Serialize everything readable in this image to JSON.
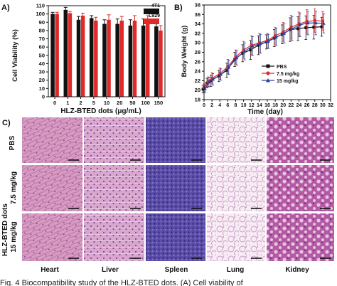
{
  "panel_a": {
    "label": "A)",
    "legend": [
      "4T1",
      "L929"
    ]
  },
  "panel_b": {
    "label": "B)",
    "legend": [
      "PBS",
      "7.5 mg/kg",
      "15 mg/kg"
    ]
  },
  "panel_c": {
    "label": "C)",
    "rows": [
      "PBS",
      "7.5 mg/kg",
      "15 mg/kg"
    ],
    "group_label": "HLZ-BTED dots",
    "columns": [
      "Heart",
      "Liver",
      "Spleen",
      "Lung",
      "Kidney"
    ]
  },
  "caption": "Fig. 4   Biocompatibility study of the HLZ-BTED dots. (A) Cell viability of",
  "colors": {
    "4T1": "#111111",
    "L929": "#e02a2a",
    "PBS": "#111111",
    "7.5 mg/kg": "#e02a2a",
    "15 mg/kg": "#2b3f9e"
  },
  "chart_data": [
    {
      "type": "bar",
      "categories": [
        "0",
        "1",
        "2",
        "5",
        "10",
        "20",
        "50",
        "100",
        "150"
      ],
      "series": [
        {
          "name": "4T1",
          "values": [
            100,
            105,
            93,
            95,
            88,
            88,
            86,
            86,
            85
          ],
          "errors": [
            2,
            3,
            4,
            3,
            5,
            6,
            7,
            8,
            3
          ]
        },
        {
          "name": "L929",
          "values": [
            100,
            101,
            98,
            92,
            93,
            92,
            92,
            91,
            80
          ],
          "errors": [
            2,
            2,
            3,
            4,
            6,
            5,
            6,
            7,
            6
          ]
        }
      ],
      "xlabel": "HLZ-BTED dots (μg/mL)",
      "ylabel": "Cell Viability (%)",
      "ylim": [
        0,
        110
      ],
      "yticks": [
        0,
        10,
        20,
        30,
        40,
        50,
        60,
        70,
        80,
        90,
        100,
        110
      ]
    },
    {
      "type": "line",
      "x": [
        0,
        1,
        2,
        4,
        6,
        8,
        10,
        12,
        14,
        16,
        18,
        20,
        22,
        24,
        26,
        28,
        30
      ],
      "series": [
        {
          "name": "PBS",
          "values": [
            20.2,
            21.5,
            22.0,
            23.0,
            24.2,
            26.5,
            27.8,
            28.5,
            29.5,
            30.2,
            31.0,
            31.8,
            32.8,
            33.0,
            33.2,
            33.3,
            33.4
          ],
          "errors": [
            0.8,
            1.0,
            1.2,
            1.2,
            1.5,
            1.5,
            1.8,
            2.0,
            2.0,
            1.5,
            1.8,
            2.0,
            2.5,
            2.5,
            2.5,
            2.5,
            2.0
          ]
        },
        {
          "name": "7.5 mg/kg",
          "values": [
            20.5,
            21.8,
            22.5,
            23.5,
            25.0,
            27.0,
            28.5,
            29.5,
            30.0,
            30.5,
            31.5,
            32.3,
            33.3,
            34.0,
            34.5,
            34.7,
            34.6
          ],
          "errors": [
            0.8,
            1.0,
            1.2,
            1.2,
            1.5,
            1.5,
            1.8,
            2.0,
            2.0,
            1.5,
            1.8,
            2.0,
            2.5,
            2.5,
            2.5,
            2.5,
            2.0
          ]
        },
        {
          "name": "15 mg/kg",
          "values": [
            20.3,
            21.7,
            22.3,
            23.3,
            24.8,
            26.8,
            28.2,
            29.3,
            29.8,
            30.3,
            31.2,
            32.0,
            33.0,
            33.8,
            34.2,
            34.2,
            34.1
          ],
          "errors": [
            0.8,
            1.0,
            1.2,
            1.2,
            1.5,
            1.5,
            1.8,
            2.0,
            2.0,
            1.5,
            1.8,
            2.0,
            2.5,
            2.5,
            2.5,
            2.5,
            2.0
          ]
        }
      ],
      "xlabel": "Time (day)",
      "ylabel": "Body Weight (g)",
      "xlim": [
        0,
        32
      ],
      "ylim": [
        18,
        38
      ],
      "xticks": [
        0,
        2,
        4,
        6,
        8,
        10,
        12,
        14,
        16,
        18,
        20,
        22,
        24,
        26,
        28,
        30,
        32
      ],
      "yticks": [
        18,
        20,
        22,
        24,
        26,
        28,
        30,
        32,
        34,
        36,
        38
      ]
    }
  ]
}
